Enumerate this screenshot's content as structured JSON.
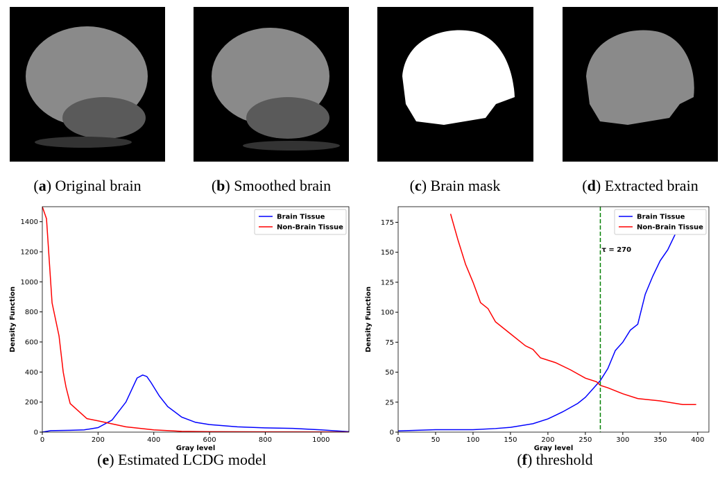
{
  "captions": [
    [
      "(",
      "a",
      ") Original brain"
    ],
    [
      "(",
      "b",
      ") Smoothed brain"
    ],
    [
      "(",
      "c",
      ") Brain mask"
    ],
    [
      "(",
      "d",
      ") Extracted brain"
    ],
    [
      "(",
      "e",
      ") Estimated LCDG model"
    ],
    [
      "(",
      "f",
      ") threshold"
    ]
  ],
  "chart_data": [
    {
      "type": "line",
      "xlabel": "Gray level",
      "ylabel": "Density Function",
      "xlim": [
        0,
        1100
      ],
      "ylim": [
        0,
        1500
      ],
      "xticks": [
        0,
        200,
        400,
        600,
        800,
        1000
      ],
      "yticks": [
        0,
        200,
        400,
        600,
        800,
        1000,
        1200,
        1400
      ],
      "legend": "upper right",
      "series": [
        {
          "name": "Brain Tissue",
          "color": "#0000ff",
          "x": [
            0,
            30,
            100,
            150,
            200,
            250,
            300,
            340,
            360,
            375,
            390,
            420,
            450,
            500,
            550,
            600,
            700,
            800,
            900,
            1000,
            1100
          ],
          "values": [
            0,
            10,
            12,
            15,
            30,
            80,
            200,
            360,
            380,
            370,
            330,
            240,
            170,
            100,
            65,
            50,
            35,
            28,
            25,
            15,
            3
          ]
        },
        {
          "name": "Non-Brain Tissue",
          "color": "#ff0000",
          "x": [
            0,
            15,
            35,
            60,
            75,
            85,
            100,
            160,
            200,
            300,
            400,
            500,
            600,
            800,
            1000,
            1100
          ],
          "values": [
            1500,
            1420,
            860,
            640,
            400,
            300,
            190,
            90,
            75,
            35,
            15,
            5,
            3,
            2,
            1,
            0
          ]
        }
      ]
    },
    {
      "type": "line",
      "xlabel": "Gray level",
      "ylabel": "Density Function",
      "xlim": [
        0,
        415
      ],
      "ylim": [
        0,
        188
      ],
      "xticks": [
        0,
        50,
        100,
        150,
        200,
        250,
        300,
        350,
        400
      ],
      "yticks": [
        0,
        25,
        50,
        75,
        100,
        125,
        150,
        175
      ],
      "legend": "upper right",
      "annotation": {
        "text": "τ = 270",
        "x": 270,
        "color": "#008000"
      },
      "series": [
        {
          "name": "Brain Tissue",
          "color": "#0000ff",
          "x": [
            0,
            50,
            100,
            130,
            150,
            180,
            200,
            210,
            220,
            240,
            250,
            260,
            270,
            280,
            290,
            300,
            310,
            320,
            330,
            340,
            350,
            360,
            370,
            378
          ],
          "values": [
            1,
            2,
            2,
            3,
            4,
            7,
            11,
            14,
            17,
            24,
            29,
            36,
            43,
            53,
            68,
            75,
            85,
            90,
            115,
            130,
            143,
            152,
            165,
            185
          ]
        },
        {
          "name": "Non-Brain Tissue",
          "color": "#ff0000",
          "x": [
            70,
            80,
            90,
            100,
            110,
            120,
            130,
            150,
            170,
            180,
            190,
            210,
            230,
            250,
            265,
            270,
            280,
            300,
            320,
            350,
            370,
            380,
            398
          ],
          "values": [
            182,
            160,
            140,
            125,
            108,
            103,
            92,
            82,
            72,
            69,
            62,
            58,
            52,
            45,
            42,
            39,
            37,
            32,
            28,
            26,
            24,
            23,
            23
          ]
        }
      ]
    }
  ]
}
